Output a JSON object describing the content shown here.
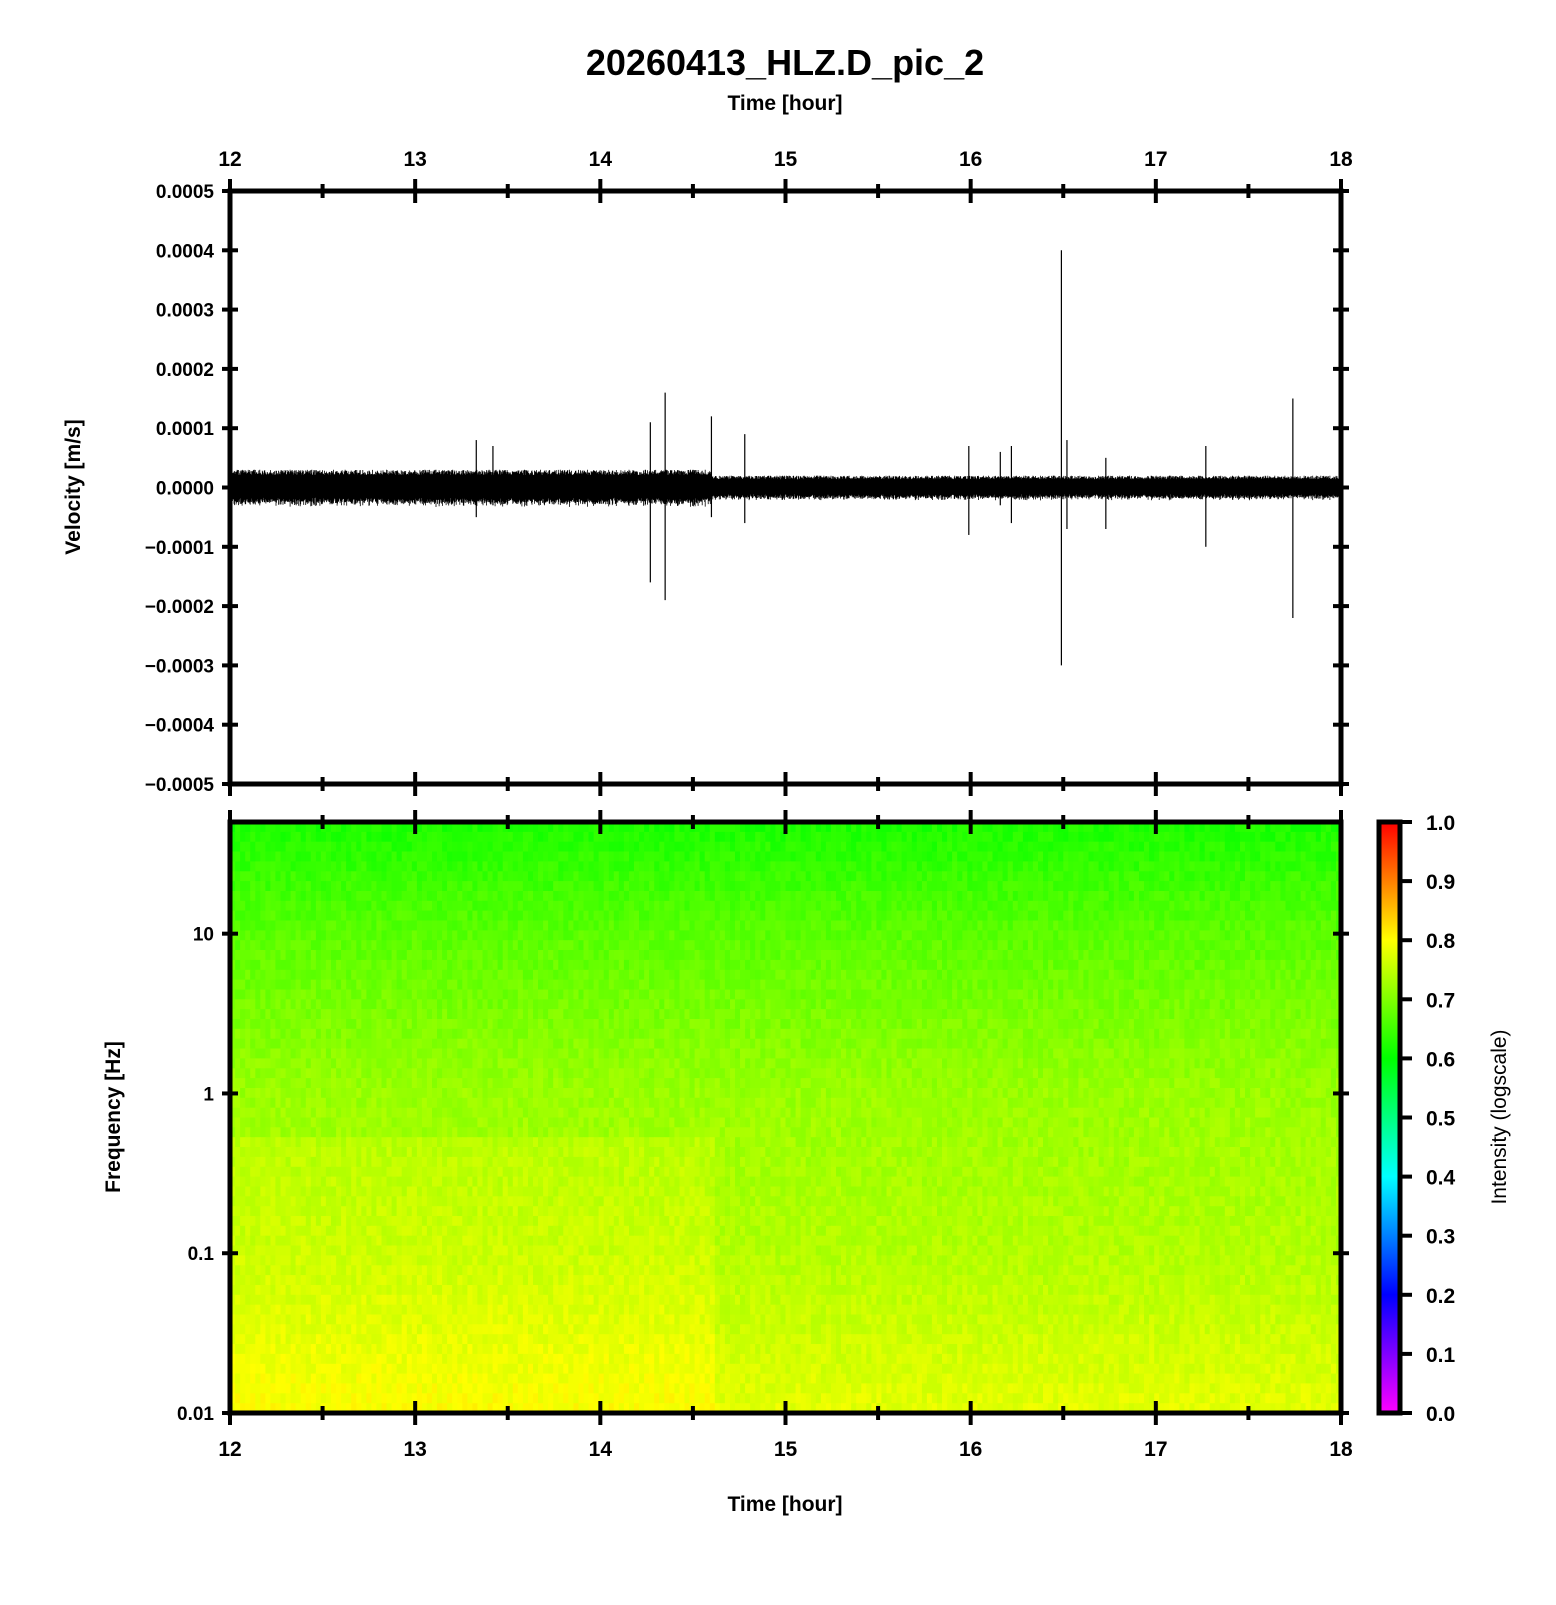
{
  "chart_data": [
    {
      "type": "line",
      "title": "20260413_HLZ.D_pic_2",
      "xlabel": "Time [hour]",
      "ylabel": "Velocity [m/s]",
      "xlim": [
        12,
        18
      ],
      "ylim": [
        -0.0005,
        0.0005
      ],
      "x_ticks": [
        "12",
        "13",
        "14",
        "15",
        "16",
        "17",
        "18"
      ],
      "y_ticks": [
        "0.0005",
        "0.0004",
        "0.0003",
        "0.0002",
        "0.0001",
        "0.0000",
        "−0.0001",
        "−0.0002",
        "−0.0003",
        "−0.0004",
        "−0.0005"
      ],
      "noise_envelope": [
        {
          "from": 12.0,
          "to": 14.6,
          "amplitude": 3e-05
        },
        {
          "from": 14.6,
          "to": 18.0,
          "amplitude": 2e-05
        }
      ],
      "spikes": [
        {
          "t": 13.33,
          "max": 8e-05,
          "min": -5e-05
        },
        {
          "t": 13.42,
          "max": 7e-05,
          "min": -3e-05
        },
        {
          "t": 14.27,
          "max": 0.00011,
          "min": -0.00016
        },
        {
          "t": 14.35,
          "max": 0.00016,
          "min": -0.00019
        },
        {
          "t": 14.6,
          "max": 0.00012,
          "min": -5e-05
        },
        {
          "t": 14.78,
          "max": 9e-05,
          "min": -6e-05
        },
        {
          "t": 15.99,
          "max": 7e-05,
          "min": -8e-05
        },
        {
          "t": 16.16,
          "max": 6e-05,
          "min": -3e-05
        },
        {
          "t": 16.22,
          "max": 7e-05,
          "min": -6e-05
        },
        {
          "t": 16.49,
          "max": 0.0004,
          "min": -0.0003
        },
        {
          "t": 16.52,
          "max": 8e-05,
          "min": -7e-05
        },
        {
          "t": 16.73,
          "max": 5e-05,
          "min": -7e-05
        },
        {
          "t": 17.27,
          "max": 7e-05,
          "min": -0.0001
        },
        {
          "t": 17.74,
          "max": 0.00015,
          "min": -0.00022
        }
      ]
    },
    {
      "type": "heatmap",
      "xlabel": "Time [hour]",
      "ylabel": "Frequency [Hz]",
      "xlim": [
        12,
        18
      ],
      "ylim": [
        0.01,
        50
      ],
      "yscale": "log",
      "x_ticks": [
        "12",
        "13",
        "14",
        "15",
        "16",
        "17",
        "18"
      ],
      "y_ticks": [
        {
          "v": 10,
          "label": "10"
        },
        {
          "v": 1,
          "label": "1"
        },
        {
          "v": 0.1,
          "label": "0.1"
        },
        {
          "v": 0.01,
          "label": "0.01"
        }
      ],
      "intensity_profile": [
        {
          "freq": 50,
          "intensity": 0.62
        },
        {
          "freq": 10,
          "intensity": 0.67
        },
        {
          "freq": 1,
          "intensity": 0.72
        },
        {
          "freq": 0.1,
          "intensity": 0.74
        },
        {
          "freq": 0.01,
          "intensity": 0.78
        }
      ],
      "colorbar": {
        "label": "Intensity (logscale)",
        "ticks": [
          "1.0",
          "0.9",
          "0.8",
          "0.7",
          "0.6",
          "0.5",
          "0.4",
          "0.3",
          "0.2",
          "0.1",
          "0.0"
        ],
        "range": [
          0,
          1
        ],
        "colors": [
          "#ff00ff",
          "#8000ff",
          "#0000ff",
          "#0080ff",
          "#00ffff",
          "#00ff80",
          "#00ff00",
          "#80ff00",
          "#ffff00",
          "#ff8000",
          "#ff0000"
        ]
      }
    }
  ]
}
